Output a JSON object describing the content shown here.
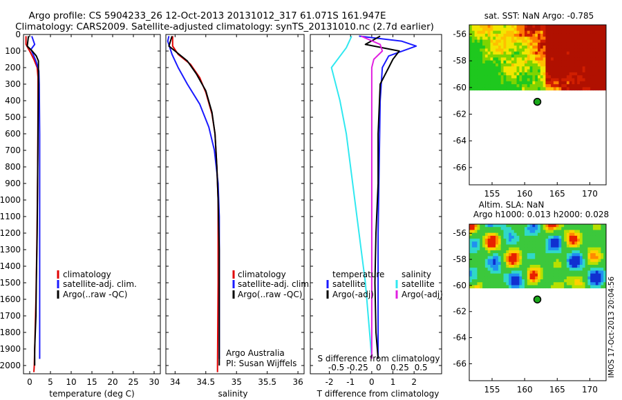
{
  "header": {
    "line1": "Argo profile: CS 5904233_26 12-Oct-2013 20131012_317 61.071S 161.947E",
    "line2": "Climatology: CARS2009. Satellite-adjusted climatology: synTS_20131010.nc (2.7d earlier)"
  },
  "stamp": "IMOS 17-Oct-2013 20:04:56",
  "colors": {
    "clim": "#e00000",
    "sat": "#1a1aff",
    "argo": "#000000",
    "cyan": "#30e8f0",
    "magenta": "#e020e0"
  },
  "chart_data": [
    {
      "type": "line",
      "id": "temperature",
      "xlabel": "temperature (deg C)",
      "xlim": [
        -1.5,
        31.5
      ],
      "ylim": [
        2050,
        0
      ],
      "xticks": [
        0,
        5,
        10,
        15,
        20,
        25,
        30
      ],
      "yticks": [
        0,
        100,
        200,
        300,
        400,
        500,
        600,
        700,
        800,
        900,
        1000,
        1100,
        1200,
        1300,
        1400,
        1500,
        1600,
        1700,
        1800,
        1900,
        2000
      ],
      "legend": [
        "climatology",
        "satellite-adj. clim.",
        "Argo(..raw -QC)"
      ],
      "series": [
        {
          "name": "climatology",
          "color": "clim",
          "points": [
            [
              -0.9,
              10
            ],
            [
              -0.9,
              60
            ],
            [
              0.2,
              110
            ],
            [
              1.0,
              150
            ],
            [
              1.8,
              200
            ],
            [
              2.0,
              260
            ],
            [
              2.0,
              400
            ],
            [
              1.95,
              700
            ],
            [
              1.85,
              1000
            ],
            [
              1.7,
              1300
            ],
            [
              1.5,
              1600
            ],
            [
              1.3,
              1800
            ],
            [
              1.1,
              2000
            ],
            [
              1.0,
              2040
            ]
          ]
        },
        {
          "name": "satellite-adj. clim.",
          "color": "sat",
          "points": [
            [
              0.5,
              10
            ],
            [
              1.2,
              60
            ],
            [
              0.3,
              90
            ],
            [
              1.5,
              160
            ],
            [
              2.2,
              220
            ],
            [
              2.3,
              300
            ],
            [
              2.4,
              600
            ],
            [
              2.4,
              1000
            ],
            [
              2.4,
              1400
            ],
            [
              2.4,
              1800
            ],
            [
              2.4,
              1960
            ]
          ]
        },
        {
          "name": "Argo(..raw -QC)",
          "color": "argo",
          "points": [
            [
              -0.3,
              10
            ],
            [
              -0.6,
              70
            ],
            [
              0.6,
              100
            ],
            [
              1.6,
              130
            ],
            [
              2.1,
              160
            ],
            [
              2.1,
              300
            ],
            [
              2.0,
              600
            ],
            [
              1.9,
              900
            ],
            [
              1.8,
              1200
            ],
            [
              1.6,
              1500
            ],
            [
              1.5,
              1700
            ],
            [
              1.2,
              1900
            ],
            [
              1.2,
              2000
            ]
          ]
        }
      ]
    },
    {
      "type": "line",
      "id": "salinity",
      "xlabel": "salinity",
      "xlim": [
        33.85,
        36.1
      ],
      "ylim": [
        2050,
        0
      ],
      "xticks": [
        34,
        34.5,
        35,
        35.5,
        36
      ],
      "xtick_labels": [
        "34",
        "34.5",
        "35",
        "35.5",
        "36"
      ],
      "legend": [
        "climatology",
        "satellite-adj. clim.",
        "Argo(..raw -QC)"
      ],
      "annotation": [
        "Argo Australia",
        "PI: Susan Wijffels"
      ],
      "series": [
        {
          "name": "climatology",
          "color": "clim",
          "points": [
            [
              33.96,
              10
            ],
            [
              33.96,
              70
            ],
            [
              34.05,
              120
            ],
            [
              34.25,
              180
            ],
            [
              34.4,
              260
            ],
            [
              34.5,
              350
            ],
            [
              34.6,
              480
            ],
            [
              34.65,
              600
            ],
            [
              34.68,
              800
            ],
            [
              34.7,
              1000
            ],
            [
              34.7,
              1500
            ],
            [
              34.69,
              2000
            ],
            [
              34.69,
              2040
            ]
          ]
        },
        {
          "name": "satellite-adj. clim.",
          "color": "sat",
          "points": [
            [
              33.9,
              10
            ],
            [
              33.88,
              40
            ],
            [
              33.95,
              120
            ],
            [
              34.05,
              200
            ],
            [
              34.2,
              300
            ],
            [
              34.4,
              420
            ],
            [
              34.55,
              560
            ],
            [
              34.64,
              700
            ],
            [
              34.7,
              900
            ],
            [
              34.72,
              1100
            ],
            [
              34.72,
              1500
            ],
            [
              34.72,
              1960
            ]
          ]
        },
        {
          "name": "Argo(..raw -QC)",
          "color": "argo",
          "points": [
            [
              33.95,
              10
            ],
            [
              33.9,
              70
            ],
            [
              34.0,
              100
            ],
            [
              34.2,
              160
            ],
            [
              34.35,
              240
            ],
            [
              34.5,
              340
            ],
            [
              34.6,
              470
            ],
            [
              34.65,
              600
            ],
            [
              34.68,
              800
            ],
            [
              34.7,
              1000
            ],
            [
              34.72,
              1300
            ],
            [
              34.72,
              1700
            ],
            [
              34.72,
              2000
            ]
          ]
        }
      ]
    },
    {
      "type": "line",
      "id": "difference",
      "xlabel": "T difference from climatology",
      "xlabel_top": "S difference from climatology",
      "xlim": [
        -2.9,
        3.3
      ],
      "ylim": [
        2050,
        0
      ],
      "xticks": [
        -2,
        -1,
        0,
        1,
        2
      ],
      "xticks_top": [
        -0.5,
        -0.25,
        0,
        0.25,
        0.5
      ],
      "xtick_labels_top": [
        "-0.5",
        "-0.25",
        "0",
        "0.25",
        "0.5"
      ],
      "legend_temperature": {
        "title": "temperature",
        "items": [
          "satellite",
          "Argo(-adj)"
        ]
      },
      "legend_salinity": {
        "title": "salinity",
        "items": [
          "satellite",
          "Argo(-adj)"
        ]
      },
      "series": [
        {
          "name": "satellite",
          "group": "temperature",
          "color": "sat",
          "points": [
            [
              -0.6,
              10
            ],
            [
              1.4,
              40
            ],
            [
              2.1,
              70
            ],
            [
              0.8,
              130
            ],
            [
              0.5,
              200
            ],
            [
              0.4,
              400
            ],
            [
              0.35,
              800
            ],
            [
              0.3,
              1200
            ],
            [
              0.3,
              1600
            ],
            [
              0.3,
              1960
            ]
          ]
        },
        {
          "name": "Argo(-adj)",
          "group": "temperature",
          "color": "argo",
          "points": [
            [
              0.4,
              10
            ],
            [
              -0.3,
              60
            ],
            [
              1.3,
              100
            ],
            [
              1.0,
              150
            ],
            [
              0.8,
              200
            ],
            [
              0.4,
              300
            ],
            [
              0.3,
              600
            ],
            [
              0.3,
              900
            ],
            [
              0.2,
              1200
            ],
            [
              0.15,
              1500
            ],
            [
              0.2,
              1800
            ],
            [
              0.3,
              1960
            ]
          ]
        },
        {
          "name": "satellite",
          "group": "salinity",
          "color": "cyan",
          "points": [
            [
              -0.95,
              10
            ],
            [
              -1.2,
              80
            ],
            [
              -1.9,
              200
            ],
            [
              -1.5,
              400
            ],
            [
              -1.2,
              600
            ],
            [
              -0.9,
              900
            ],
            [
              -0.6,
              1200
            ],
            [
              -0.3,
              1500
            ],
            [
              -0.1,
              1800
            ],
            [
              0.0,
              1960
            ]
          ]
        },
        {
          "name": "Argo(-adj)",
          "group": "salinity",
          "color": "magenta",
          "points": [
            [
              -0.5,
              10
            ],
            [
              0.4,
              60
            ],
            [
              0.5,
              100
            ],
            [
              0.1,
              150
            ],
            [
              0.0,
              200
            ],
            [
              0.0,
              400
            ],
            [
              0.0,
              1000
            ],
            [
              0.0,
              1500
            ],
            [
              0.0,
              1960
            ]
          ]
        }
      ]
    },
    {
      "type": "heatmap",
      "id": "sst_map",
      "title": "sat. SST: NaN Argo: -0.785",
      "xlim": [
        151.5,
        172.5
      ],
      "ylim": [
        -67.3,
        -55.3
      ],
      "xticks": [
        155,
        160,
        165,
        170
      ],
      "yticks": [
        -56,
        -58,
        -60,
        -62,
        -64,
        -66
      ],
      "data_lat_range": [
        -60.2,
        -55.3
      ],
      "argo_position": [
        161.947,
        -61.071
      ]
    },
    {
      "type": "heatmap",
      "id": "sla_map",
      "title": "Altim. SLA: NaN",
      "subtitle": "Argo h1000: 0.013 h2000: 0.028",
      "xlim": [
        151.5,
        172.5
      ],
      "ylim": [
        -67.3,
        -55.3
      ],
      "xticks": [
        155,
        160,
        165,
        170
      ],
      "yticks": [
        -56,
        -58,
        -60,
        -62,
        -64,
        -66
      ],
      "data_lat_range": [
        -60.2,
        -55.3
      ],
      "argo_position": [
        161.947,
        -61.071
      ]
    }
  ]
}
